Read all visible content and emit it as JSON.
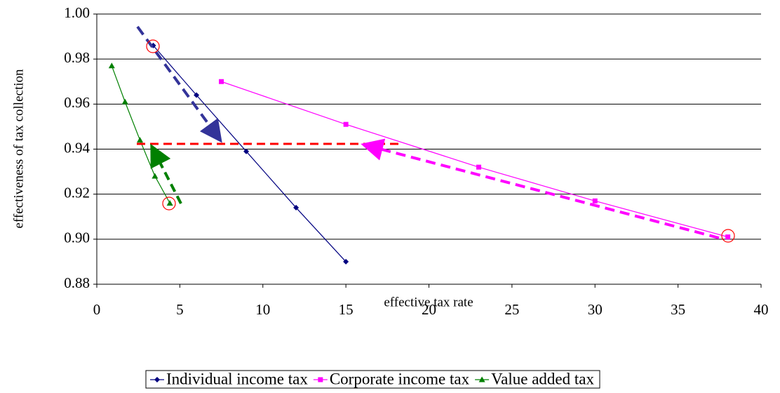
{
  "chart_data": {
    "type": "line",
    "x_label": "effective tax rate",
    "y_label": "effectiveness of tax collection",
    "xlim": [
      0,
      40
    ],
    "xticks": [
      0,
      5,
      10,
      15,
      20,
      25,
      30,
      35,
      40
    ],
    "ylim": [
      0.88,
      1.0
    ],
    "yticks": [
      0.88,
      {
        "value": 0.9,
        "label": "0.90"
      },
      0.92,
      0.94,
      0.96,
      0.98,
      {
        "value": 1.0,
        "label": "1.00"
      }
    ],
    "grid": true,
    "legend": "bottom",
    "series": [
      {
        "name": "Individual income tax",
        "color": "#000080",
        "marker": "diamond",
        "x": [
          3.4,
          6.0,
          9.0,
          12.0,
          15.0
        ],
        "values": [
          0.986,
          0.964,
          0.939,
          0.914,
          0.89
        ]
      },
      {
        "name": "Corporate income tax",
        "color": "#ff00ff",
        "marker": "square",
        "x": [
          7.5,
          15.0,
          23.0,
          30.0,
          38.0
        ],
        "values": [
          0.97,
          0.951,
          0.932,
          0.917,
          0.901
        ]
      },
      {
        "name": "Value added tax",
        "color": "#008000",
        "marker": "triangle",
        "x": [
          0.9,
          1.7,
          2.6,
          3.5,
          4.4
        ],
        "values": [
          0.977,
          0.961,
          0.944,
          0.928,
          0.916
        ]
      }
    ]
  }
}
